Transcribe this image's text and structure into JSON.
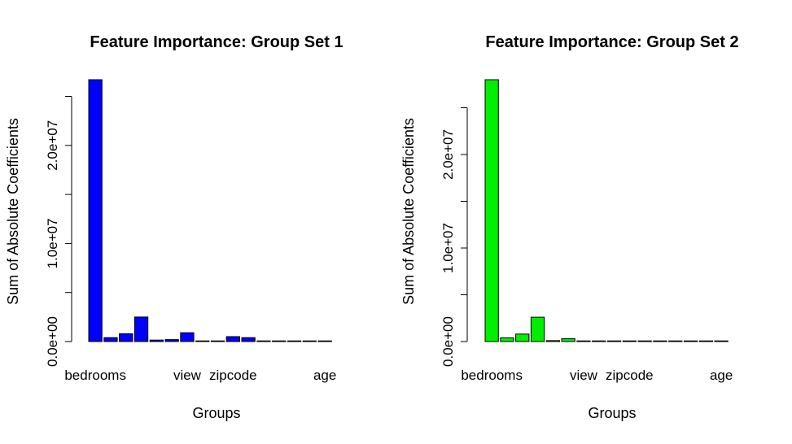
{
  "chart_data": [
    {
      "type": "bar",
      "title": "Feature Importance: Group Set 1",
      "xlabel": "Groups",
      "ylabel": "Sum of Absolute Coefficients",
      "ylim": [
        0,
        26700000
      ],
      "yticks": [
        0,
        5000000,
        10000000,
        15000000,
        20000000,
        25000000
      ],
      "ytick_labels": [
        "0.0e+00",
        "",
        "1.0e+07",
        "",
        "2.0e+07",
        ""
      ],
      "categories": [
        "bedrooms",
        "",
        "",
        "",
        "",
        "",
        "view",
        "",
        "",
        "zipcode",
        "",
        "",
        "",
        "",
        "",
        "age"
      ],
      "xtick_labels": [
        {
          "index": 0,
          "label": "bedrooms"
        },
        {
          "index": 6,
          "label": "view"
        },
        {
          "index": 9,
          "label": "zipcode"
        },
        {
          "index": 15,
          "label": "age"
        }
      ],
      "values": [
        26700000,
        400000,
        800000,
        2500000,
        150000,
        200000,
        900000,
        30000,
        30000,
        500000,
        400000,
        20000,
        20000,
        20000,
        20000,
        20000
      ],
      "bar_color": "#0000FF"
    },
    {
      "type": "bar",
      "title": "Feature Importance: Group Set 2",
      "xlabel": "Groups",
      "ylabel": "Sum of Absolute Coefficients",
      "ylim": [
        0,
        28000000
      ],
      "yticks": [
        0,
        5000000,
        10000000,
        15000000,
        20000000,
        25000000
      ],
      "ytick_labels": [
        "0.0e+00",
        "",
        "1.0e+07",
        "",
        "2.0e+07",
        ""
      ],
      "categories": [
        "bedrooms",
        "",
        "",
        "",
        "",
        "",
        "view",
        "",
        "",
        "zipcode",
        "",
        "",
        "",
        "",
        "",
        "age"
      ],
      "xtick_labels": [
        {
          "index": 0,
          "label": "bedrooms"
        },
        {
          "index": 6,
          "label": "view"
        },
        {
          "index": 9,
          "label": "zipcode"
        },
        {
          "index": 15,
          "label": "age"
        }
      ],
      "values": [
        28000000,
        400000,
        800000,
        2600000,
        100000,
        300000,
        20000,
        20000,
        20000,
        20000,
        20000,
        20000,
        20000,
        20000,
        20000,
        20000
      ],
      "bar_color": "#00EE00"
    }
  ]
}
